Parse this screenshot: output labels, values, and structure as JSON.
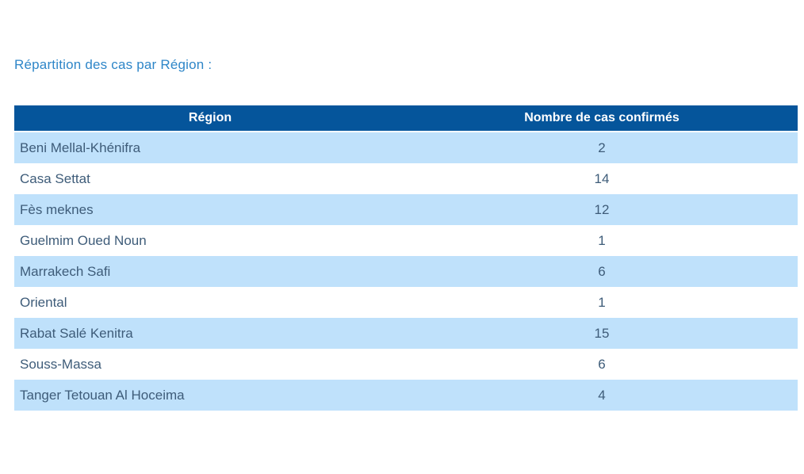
{
  "title": "Répartition des cas par Région :",
  "table": {
    "columns": [
      "Région",
      "Nombre de cas confirmés"
    ],
    "rows": [
      {
        "region": "Beni Mellal-Khénifra",
        "cases": "2"
      },
      {
        "region": "Casa Settat",
        "cases": "14"
      },
      {
        "region": "Fès meknes",
        "cases": "12"
      },
      {
        "region": "Guelmim Oued Noun",
        "cases": "1"
      },
      {
        "region": "Marrakech Safi",
        "cases": "6"
      },
      {
        "region": "Oriental",
        "cases": "1"
      },
      {
        "region": "Rabat Salé Kenitra",
        "cases": "15"
      },
      {
        "region": "Souss-Massa",
        "cases": "6"
      },
      {
        "region": "Tanger Tetouan Al Hoceima",
        "cases": "4"
      }
    ]
  },
  "colors": {
    "header_bg": "#05559B",
    "header_text": "#FFFFFF",
    "row_alt_bg": "#BFE1FB",
    "row_bg": "#FFFFFF",
    "row_text": "#3E5C79",
    "title_text": "#2E86C8",
    "page_bg": "#FFFFFF"
  },
  "chart_data": {
    "type": "table",
    "title": "Répartition des cas par Région :",
    "columns": [
      "Région",
      "Nombre de cas confirmés"
    ],
    "rows": [
      [
        "Beni Mellal-Khénifra",
        2
      ],
      [
        "Casa Settat",
        14
      ],
      [
        "Fès meknes",
        12
      ],
      [
        "Guelmim Oued Noun",
        1
      ],
      [
        "Marrakech Safi",
        6
      ],
      [
        "Oriental",
        1
      ],
      [
        "Rabat Salé Kenitra",
        15
      ],
      [
        "Souss-Massa",
        6
      ],
      [
        "Tanger Tetouan Al Hoceima",
        4
      ]
    ]
  }
}
